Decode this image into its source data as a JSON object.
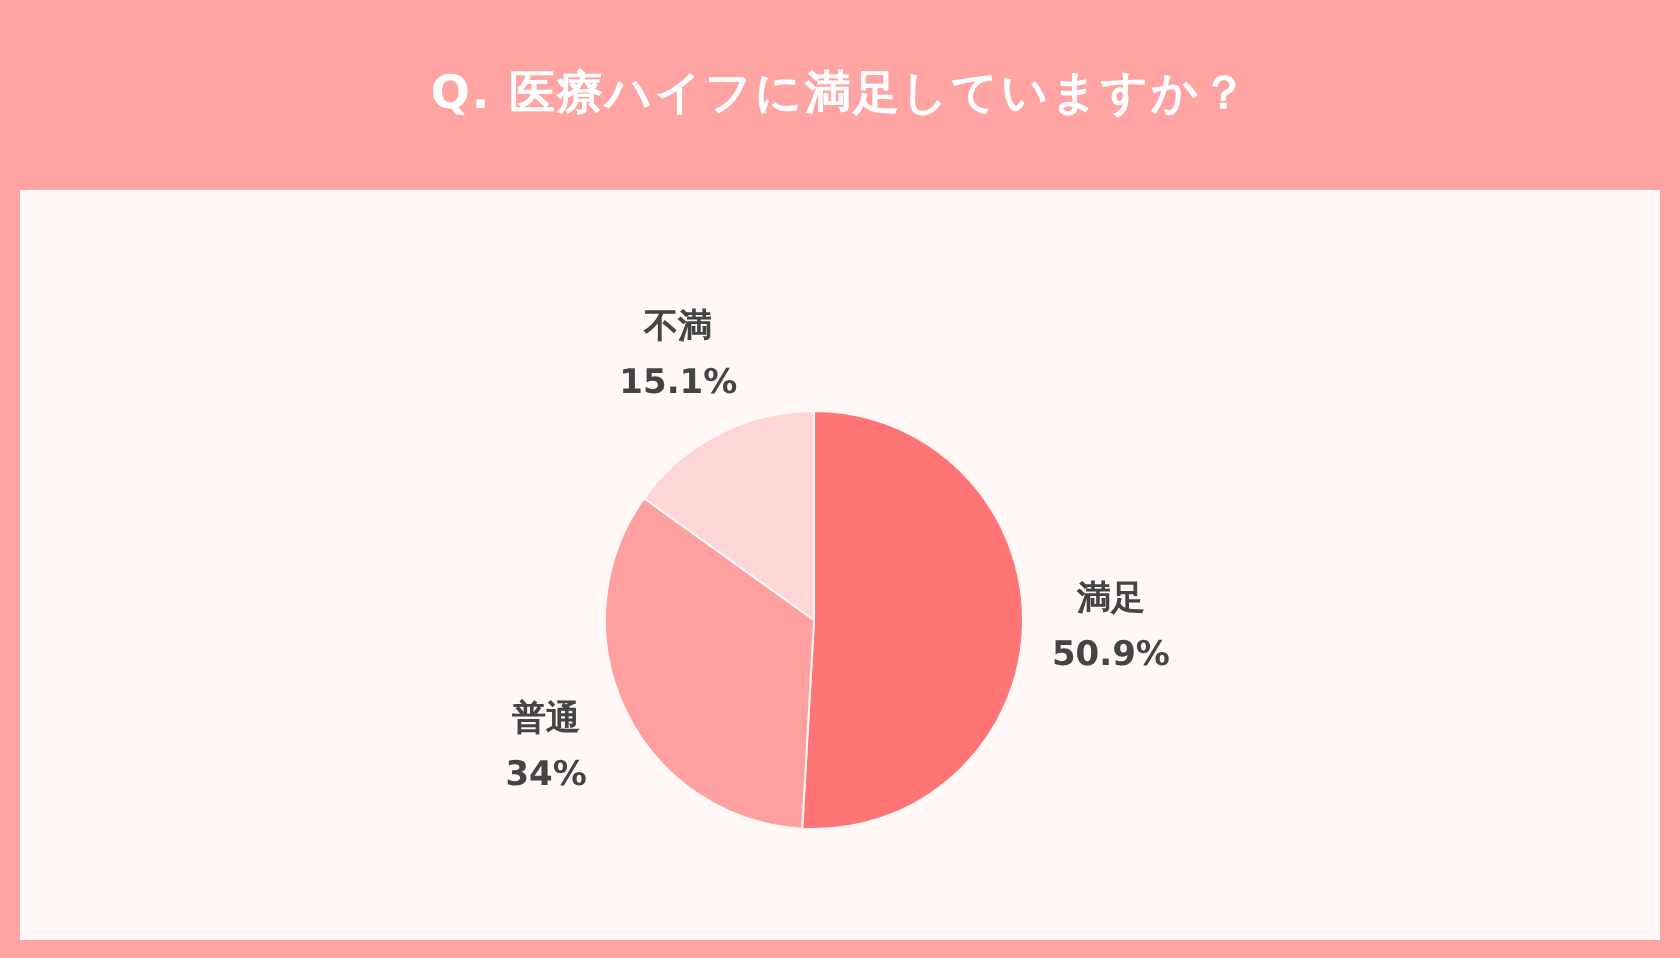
{
  "chart_data": {
    "type": "pie",
    "title": "Q. 医療ハイフに満足していますか？",
    "categories": [
      "満足",
      "普通",
      "不満"
    ],
    "values": [
      50.9,
      34,
      15.1
    ],
    "colors": [
      "#ff7575",
      "#ffa0a0",
      "#ffd6d8"
    ],
    "value_labels": [
      "50.9%",
      "34%",
      "15.1%"
    ]
  }
}
